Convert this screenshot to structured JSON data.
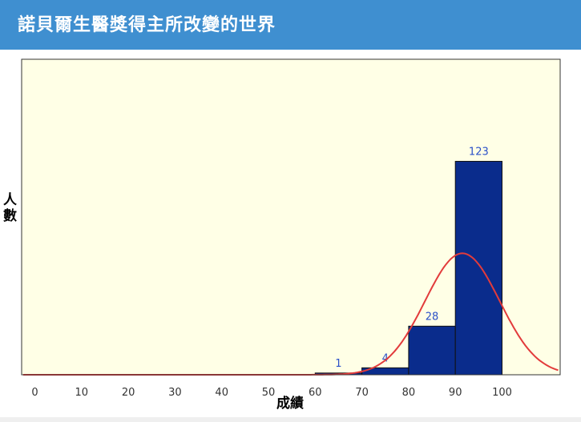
{
  "header": {
    "title": "諾貝爾生醫獎得主所改變的世界"
  },
  "colors": {
    "header_bg": "#3f8fd0",
    "plot_bg": "#ffffe6",
    "bar": "#0a2c8c",
    "curve": "#e23b3b",
    "label": "#2a50c8"
  },
  "chart_data": {
    "type": "bar",
    "title": "",
    "xlabel": "成績",
    "ylabel": "人數",
    "xlim": [
      -3,
      113
    ],
    "ylim": [
      0,
      200
    ],
    "xticks": [
      0,
      10,
      20,
      30,
      40,
      50,
      60,
      70,
      80,
      90,
      100
    ],
    "bins": [
      {
        "from": 60,
        "to": 70,
        "value": 1,
        "label": "1"
      },
      {
        "from": 70,
        "to": 80,
        "value": 4,
        "label": "4"
      },
      {
        "from": 80,
        "to": 90,
        "value": 28,
        "label": "28"
      },
      {
        "from": 90,
        "to": 100,
        "value": 123,
        "label": "123"
      }
    ],
    "curve": {
      "type": "normal",
      "mean": 91.5,
      "sd": 8,
      "peak": 70
    }
  }
}
